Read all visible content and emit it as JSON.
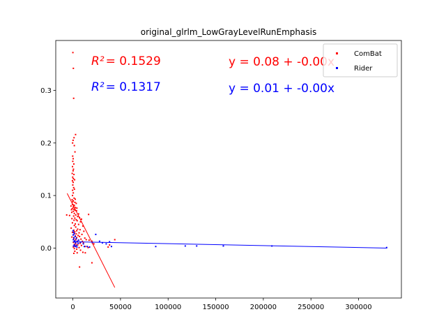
{
  "chart_data": {
    "type": "scatter",
    "title": "original_glrlm_LowGrayLevelRunEmphasis",
    "xlabel": "",
    "ylabel": "",
    "xlim": [
      -18000,
      345000
    ],
    "ylim": [
      -0.095,
      0.395
    ],
    "x_ticks": [
      0,
      50000,
      100000,
      150000,
      200000,
      250000,
      300000
    ],
    "x_tick_labels": [
      "0",
      "50000",
      "100000",
      "150000",
      "200000",
      "250000",
      "300000"
    ],
    "y_ticks": [
      0.0,
      0.1,
      0.2,
      0.3
    ],
    "y_tick_labels": [
      "0.0",
      "0.1",
      "0.2",
      "0.3"
    ],
    "grid": false,
    "legend": {
      "placement": "top-right",
      "entries": [
        "ComBat",
        "Rider"
      ]
    },
    "annotations": [
      {
        "r2_label": "R²",
        "r2_value": "= 0.1529",
        "equation": "y = 0.08 + -0.00x",
        "color": "#ff0000"
      },
      {
        "r2_label": "R²",
        "r2_value": "= 0.1317",
        "equation": "y = 0.01 + -0.00x",
        "color": "#0000ff"
      }
    ],
    "series": [
      {
        "name": "ComBat",
        "color": "#ff0000",
        "fit": {
          "x": [
            -6000,
            44000
          ],
          "y": [
            0.104,
            -0.075
          ]
        },
        "points": [
          [
            0,
            0.372
          ],
          [
            500,
            0.342
          ],
          [
            800,
            0.285
          ],
          [
            2800,
            0.216
          ],
          [
            1200,
            0.21
          ],
          [
            200,
            0.205
          ],
          [
            -300,
            0.2
          ],
          [
            1500,
            0.195
          ],
          [
            2200,
            0.183
          ],
          [
            -200,
            0.175
          ],
          [
            300,
            0.17
          ],
          [
            -100,
            0.165
          ],
          [
            1000,
            0.16
          ],
          [
            -400,
            0.155
          ],
          [
            600,
            0.15
          ],
          [
            200,
            0.147
          ],
          [
            -700,
            0.142
          ],
          [
            1100,
            0.14
          ],
          [
            -200,
            0.135
          ],
          [
            500,
            0.132
          ],
          [
            1800,
            0.13
          ],
          [
            -500,
            0.128
          ],
          [
            300,
            0.125
          ],
          [
            -100,
            0.12
          ],
          [
            800,
            0.115
          ],
          [
            1600,
            0.112
          ],
          [
            -300,
            0.11
          ],
          [
            400,
            0.105
          ],
          [
            -400,
            0.1
          ],
          [
            1300,
            0.095
          ],
          [
            2500,
            0.093
          ],
          [
            -800,
            0.092
          ],
          [
            400,
            0.09
          ],
          [
            -200,
            0.088
          ],
          [
            2100,
            0.087
          ],
          [
            3500,
            0.085
          ],
          [
            -500,
            0.083
          ],
          [
            700,
            0.082
          ],
          [
            1500,
            0.081
          ],
          [
            -2000,
            0.08
          ],
          [
            300,
            0.078
          ],
          [
            2700,
            0.077
          ],
          [
            4200,
            0.076
          ],
          [
            -700,
            0.075
          ],
          [
            1000,
            0.074
          ],
          [
            -1500,
            0.073
          ],
          [
            2200,
            0.072
          ],
          [
            3800,
            0.071
          ],
          [
            500,
            0.07
          ],
          [
            -1200,
            0.068
          ],
          [
            1500,
            0.066
          ],
          [
            6000,
            0.065
          ],
          [
            16500,
            0.064
          ],
          [
            3000,
            0.063
          ],
          [
            -3500,
            0.062
          ],
          [
            800,
            0.061
          ],
          [
            -6500,
            0.063
          ],
          [
            5000,
            0.06
          ],
          [
            7000,
            0.058
          ],
          [
            2000,
            0.057
          ],
          [
            -1000,
            0.056
          ],
          [
            9000,
            0.055
          ],
          [
            3500,
            0.054
          ],
          [
            1200,
            0.053
          ],
          [
            4500,
            0.052
          ],
          [
            8000,
            0.05
          ],
          [
            -500,
            0.048
          ],
          [
            2500,
            0.046
          ],
          [
            6000,
            0.045
          ],
          [
            1500,
            0.043
          ],
          [
            10500,
            0.042
          ],
          [
            3000,
            0.04
          ],
          [
            -1800,
            0.038
          ],
          [
            5000,
            0.036
          ],
          [
            7500,
            0.035
          ],
          [
            1000,
            0.034
          ],
          [
            4000,
            0.033
          ],
          [
            11500,
            0.032
          ],
          [
            2000,
            0.031
          ],
          [
            -500,
            0.03
          ],
          [
            6500,
            0.029
          ],
          [
            1500,
            0.028
          ],
          [
            3500,
            0.027
          ],
          [
            9500,
            0.026
          ],
          [
            500,
            0.025
          ],
          [
            5500,
            0.024
          ],
          [
            2500,
            0.023
          ],
          [
            7000,
            0.022
          ],
          [
            -1000,
            0.021
          ],
          [
            4000,
            0.02
          ],
          [
            12500,
            0.019
          ],
          [
            1000,
            0.018
          ],
          [
            8500,
            0.017
          ],
          [
            3000,
            0.016
          ],
          [
            14000,
            0.016
          ],
          [
            17000,
            0.015
          ],
          [
            6000,
            0.015
          ],
          [
            2000,
            0.014
          ],
          [
            20000,
            0.013
          ],
          [
            10000,
            0.013
          ],
          [
            4500,
            0.012
          ],
          [
            500,
            0.011
          ],
          [
            11000,
            0.01
          ],
          [
            7500,
            0.009
          ],
          [
            3000,
            0.008
          ],
          [
            22000,
            0.008
          ],
          [
            1500,
            0.007
          ],
          [
            5000,
            0.006
          ],
          [
            9000,
            0.005
          ],
          [
            2500,
            0.004
          ],
          [
            13000,
            0.003
          ],
          [
            500,
            0.002
          ],
          [
            6500,
            0.001
          ],
          [
            16000,
            0.001
          ],
          [
            1500,
            -0.001
          ],
          [
            4000,
            -0.002
          ],
          [
            8000,
            -0.004
          ],
          [
            2000,
            -0.006
          ],
          [
            10500,
            -0.008
          ],
          [
            4500,
            -0.009
          ],
          [
            1000,
            -0.01
          ],
          [
            13000,
            -0.009
          ],
          [
            20000,
            -0.028
          ],
          [
            7000,
            -0.036
          ],
          [
            37000,
            0.002
          ],
          [
            38500,
            0.006
          ],
          [
            44000,
            0.016
          ]
        ]
      },
      {
        "name": "Rider",
        "color": "#0000ff",
        "fit": {
          "x": [
            0,
            330000
          ],
          "y": [
            0.012,
            0.0
          ]
        },
        "points": [
          [
            200,
            0.033
          ],
          [
            800,
            0.03
          ],
          [
            1500,
            0.027
          ],
          [
            300,
            0.025
          ],
          [
            2500,
            0.022
          ],
          [
            1000,
            0.02
          ],
          [
            3500,
            0.018
          ],
          [
            500,
            0.016
          ],
          [
            6000,
            0.015
          ],
          [
            2000,
            0.014
          ],
          [
            4500,
            0.013
          ],
          [
            1200,
            0.012
          ],
          [
            8000,
            0.011
          ],
          [
            2800,
            0.01
          ],
          [
            5500,
            0.009
          ],
          [
            11000,
            0.008
          ],
          [
            1600,
            0.006
          ],
          [
            3800,
            0.005
          ],
          [
            700,
            0.004
          ],
          [
            2300,
            0.003
          ],
          [
            12000,
            0.003
          ],
          [
            4200,
            0.002
          ],
          [
            15000,
            0.003
          ],
          [
            17500,
            0.002
          ],
          [
            20500,
            0.01
          ],
          [
            24000,
            0.026
          ],
          [
            28000,
            0.013
          ],
          [
            31000,
            0.01
          ],
          [
            35000,
            0.008
          ],
          [
            38500,
            0.012
          ],
          [
            40500,
            0.003
          ],
          [
            87000,
            0.003
          ],
          [
            118000,
            0.004
          ],
          [
            130000,
            0.004
          ],
          [
            158000,
            0.004
          ],
          [
            209000,
            0.004
          ],
          [
            329500,
            0.001
          ]
        ]
      }
    ]
  }
}
